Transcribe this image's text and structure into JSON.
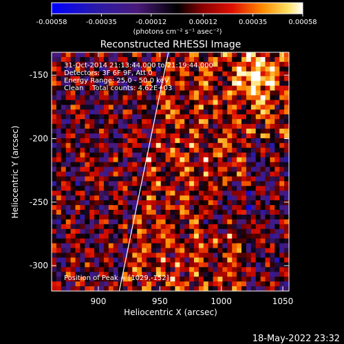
{
  "chart_data": {
    "type": "heatmap",
    "title": "Reconstructed RHESSI Image",
    "xlabel": "Heliocentric X (arcsec)",
    "ylabel": "Heliocentric Y (arcsec)",
    "xlim": [
      862,
      1055
    ],
    "ylim": [
      -320,
      -132
    ],
    "xticks": [
      900,
      950,
      1000,
      1050
    ],
    "yticks": [
      -150,
      -200,
      -250,
      -300
    ],
    "colorbar": {
      "range": [
        -0.00058,
        0.00058
      ],
      "tick_values": [
        -0.00058,
        -0.00035,
        -0.00012,
        0.00012,
        0.00035,
        0.00058
      ],
      "tick_labels": [
        "-0.00058",
        "-0.00035",
        "-0.00012",
        "0.00012",
        "0.00035",
        "0.00058"
      ],
      "unit_label": "(photons cm⁻² s⁻¹ asec⁻²)"
    },
    "annotations": [
      "31-Oct-2014 21:13:44.000 to 21:19:44.000",
      "Detectors: 3F 6F 9F, Att 0",
      "Energy Range: 25.0 - 50.0 keV",
      "Clean    Total counts: 4.62E+03",
      "Position of Peak = [1029,-152]"
    ],
    "limb_line": [
      {
        "x": 917,
        "y": -320
      },
      {
        "x": 957,
        "y": -132
      }
    ],
    "peak_position": [
      1029,
      -152
    ],
    "timestamp": "18-May-2022 23:32"
  }
}
